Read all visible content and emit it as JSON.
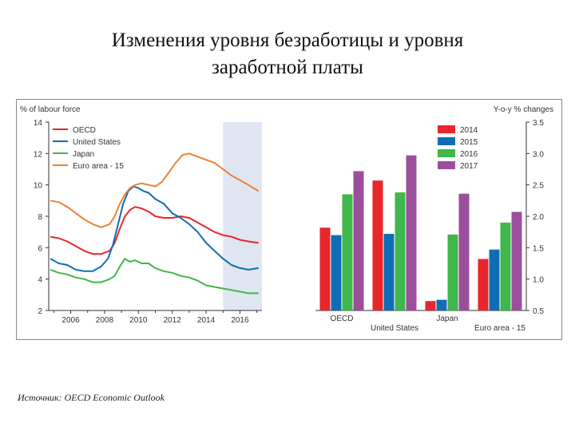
{
  "slide": {
    "title_line1": "Изменения уровня безработицы и уровня",
    "title_line2": "заработной платы",
    "source": "Источник: OECD Economic Outlook"
  },
  "colors": {
    "oecd": "#e8262b",
    "us": "#0f6db5",
    "japan": "#3fb74a",
    "euro": "#f07f33",
    "y2014": "#e8262b",
    "y2015": "#0f6db5",
    "y2016": "#3fb74a",
    "y2017": "#9b4e9b",
    "projection_shade": "#dfe6f1"
  },
  "chart_data": [
    {
      "type": "line",
      "ylabel": "% of labour force",
      "ylim": [
        2,
        14
      ],
      "yticks": [
        "2",
        "4",
        "6",
        "8",
        "10",
        "12",
        "14"
      ],
      "xlim": [
        2004.7,
        2017.3
      ],
      "xticks": [
        "2006",
        "2008",
        "2010",
        "2012",
        "2014",
        "2016"
      ],
      "projection_start": 2015,
      "grid": false,
      "legend": "top-left",
      "series": [
        {
          "name": "OECD",
          "color_key": "oecd",
          "points": [
            [
              2004.8,
              6.7
            ],
            [
              2005.3,
              6.6
            ],
            [
              2005.8,
              6.4
            ],
            [
              2006.3,
              6.1
            ],
            [
              2006.8,
              5.8
            ],
            [
              2007.3,
              5.6
            ],
            [
              2007.8,
              5.6
            ],
            [
              2008.3,
              5.8
            ],
            [
              2008.6,
              6.3
            ],
            [
              2008.9,
              7.2
            ],
            [
              2009.2,
              8.0
            ],
            [
              2009.5,
              8.4
            ],
            [
              2009.8,
              8.6
            ],
            [
              2010.2,
              8.5
            ],
            [
              2010.6,
              8.3
            ],
            [
              2011.0,
              8.0
            ],
            [
              2011.5,
              7.9
            ],
            [
              2012.0,
              7.9
            ],
            [
              2012.5,
              8.0
            ],
            [
              2013.0,
              7.9
            ],
            [
              2013.5,
              7.6
            ],
            [
              2014.0,
              7.3
            ],
            [
              2014.5,
              7.0
            ],
            [
              2015.0,
              6.8
            ],
            [
              2015.5,
              6.7
            ],
            [
              2016.0,
              6.5
            ],
            [
              2016.5,
              6.4
            ],
            [
              2017.1,
              6.3
            ]
          ]
        },
        {
          "name": "United States",
          "color_key": "us",
          "points": [
            [
              2004.8,
              5.3
            ],
            [
              2005.3,
              5.0
            ],
            [
              2005.8,
              4.9
            ],
            [
              2006.3,
              4.6
            ],
            [
              2006.8,
              4.5
            ],
            [
              2007.3,
              4.5
            ],
            [
              2007.8,
              4.8
            ],
            [
              2008.2,
              5.3
            ],
            [
              2008.5,
              6.2
            ],
            [
              2008.8,
              7.5
            ],
            [
              2009.1,
              8.8
            ],
            [
              2009.4,
              9.6
            ],
            [
              2009.7,
              9.9
            ],
            [
              2010.0,
              9.8
            ],
            [
              2010.3,
              9.6
            ],
            [
              2010.6,
              9.5
            ],
            [
              2011.0,
              9.1
            ],
            [
              2011.5,
              8.8
            ],
            [
              2012.0,
              8.2
            ],
            [
              2012.5,
              7.9
            ],
            [
              2013.0,
              7.5
            ],
            [
              2013.5,
              7.0
            ],
            [
              2014.0,
              6.3
            ],
            [
              2014.5,
              5.8
            ],
            [
              2015.0,
              5.3
            ],
            [
              2015.5,
              4.9
            ],
            [
              2016.0,
              4.7
            ],
            [
              2016.5,
              4.6
            ],
            [
              2017.1,
              4.7
            ]
          ]
        },
        {
          "name": "Japan",
          "color_key": "japan",
          "points": [
            [
              2004.8,
              4.6
            ],
            [
              2005.3,
              4.4
            ],
            [
              2005.8,
              4.3
            ],
            [
              2006.3,
              4.1
            ],
            [
              2006.8,
              4.0
            ],
            [
              2007.3,
              3.8
            ],
            [
              2007.8,
              3.8
            ],
            [
              2008.3,
              4.0
            ],
            [
              2008.6,
              4.2
            ],
            [
              2008.9,
              4.8
            ],
            [
              2009.2,
              5.3
            ],
            [
              2009.5,
              5.1
            ],
            [
              2009.8,
              5.2
            ],
            [
              2010.2,
              5.0
            ],
            [
              2010.6,
              5.0
            ],
            [
              2011.0,
              4.7
            ],
            [
              2011.5,
              4.5
            ],
            [
              2012.0,
              4.4
            ],
            [
              2012.5,
              4.2
            ],
            [
              2013.0,
              4.1
            ],
            [
              2013.5,
              3.9
            ],
            [
              2014.0,
              3.6
            ],
            [
              2014.5,
              3.5
            ],
            [
              2015.0,
              3.4
            ],
            [
              2015.5,
              3.3
            ],
            [
              2016.0,
              3.2
            ],
            [
              2016.5,
              3.1
            ],
            [
              2017.1,
              3.1
            ]
          ]
        },
        {
          "name": "Euro area - 15",
          "color_key": "euro",
          "points": [
            [
              2004.8,
              9.0
            ],
            [
              2005.3,
              8.9
            ],
            [
              2005.8,
              8.6
            ],
            [
              2006.3,
              8.2
            ],
            [
              2006.8,
              7.8
            ],
            [
              2007.3,
              7.5
            ],
            [
              2007.8,
              7.3
            ],
            [
              2008.3,
              7.5
            ],
            [
              2008.6,
              8.0
            ],
            [
              2008.9,
              8.8
            ],
            [
              2009.2,
              9.4
            ],
            [
              2009.5,
              9.8
            ],
            [
              2009.8,
              10.0
            ],
            [
              2010.2,
              10.1
            ],
            [
              2010.6,
              10.0
            ],
            [
              2011.0,
              9.9
            ],
            [
              2011.4,
              10.2
            ],
            [
              2011.8,
              10.8
            ],
            [
              2012.2,
              11.4
            ],
            [
              2012.6,
              11.9
            ],
            [
              2013.0,
              12.0
            ],
            [
              2013.5,
              11.8
            ],
            [
              2014.0,
              11.6
            ],
            [
              2014.5,
              11.4
            ],
            [
              2015.0,
              11.0
            ],
            [
              2015.5,
              10.6
            ],
            [
              2016.0,
              10.3
            ],
            [
              2016.5,
              10.0
            ],
            [
              2017.1,
              9.6
            ]
          ]
        }
      ]
    },
    {
      "type": "bar",
      "ylabel": "Y-o-y % changes",
      "ylim": [
        0.5,
        3.5
      ],
      "yticks": [
        "0.5",
        "1.0",
        "1.5",
        "2.0",
        "2.5",
        "3.0",
        "3.5"
      ],
      "categories": [
        "OECD",
        "United States",
        "Japan",
        "Euro area - 15"
      ],
      "category_rows": [
        0,
        1,
        0,
        1
      ],
      "grid": false,
      "legend": "top-center",
      "series": [
        {
          "name": "2014",
          "color_key": "y2014",
          "values": [
            1.82,
            2.57,
            0.65,
            1.32
          ]
        },
        {
          "name": "2015",
          "color_key": "y2015",
          "values": [
            1.7,
            1.72,
            0.67,
            1.47
          ]
        },
        {
          "name": "2016",
          "color_key": "y2016",
          "values": [
            2.35,
            2.38,
            1.71,
            1.9
          ]
        },
        {
          "name": "2017",
          "color_key": "y2017",
          "values": [
            2.72,
            2.97,
            2.36,
            2.07
          ]
        }
      ]
    }
  ]
}
